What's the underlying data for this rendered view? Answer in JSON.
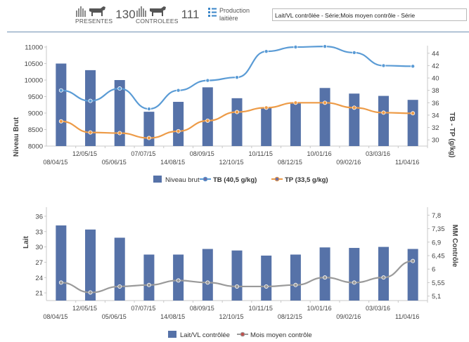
{
  "header": {
    "presentes": {
      "label": "PRESENTES",
      "value": "130"
    },
    "controlees": {
      "label": "CONTROLEES",
      "value": "111"
    },
    "production": {
      "line1": "Production",
      "line2": "laitière"
    },
    "select_value": "Lait/VL contrôlée - Série;Mois moyen contrôle - Série"
  },
  "chart_data": [
    {
      "type": "bar",
      "categories": [
        "08/04/15",
        "12/05/15",
        "05/06/15",
        "07/07/15",
        "14/08/15",
        "08/09/15",
        "12/10/15",
        "10/11/15",
        "08/12/15",
        "10/01/16",
        "09/02/16",
        "03/03/16",
        "11/04/16"
      ],
      "x_tick_labels": [
        "08/04/15",
        "12/05/15",
        "05/06/15",
        "07/07/15",
        "14/08/15",
        "08/09/15",
        "12/10/15",
        "10/11/15",
        "08/12/15",
        "10/01/16",
        "09/02/16",
        "03/03/16",
        "11/04/16"
      ],
      "ylabel": "Niveau Brut",
      "y2label": "TB - TP (g/kg)",
      "ylim": [
        8000,
        11000
      ],
      "yticks": [
        "8000",
        "8500",
        "9000",
        "9500",
        "10000",
        "10500",
        "11000"
      ],
      "y2lim": [
        29,
        45
      ],
      "y2ticks": [
        "30",
        "32",
        "34",
        "36",
        "38",
        "40",
        "42",
        "44"
      ],
      "series": [
        {
          "name": "Niveau brut",
          "kind": "bar",
          "axis": "left",
          "color": "#5672a8",
          "values": [
            10500,
            10300,
            10000,
            9040,
            9340,
            9780,
            9450,
            9170,
            9330,
            9760,
            9590,
            9520,
            9400
          ]
        },
        {
          "name": "TB (40,5 g/kg)",
          "kind": "line",
          "axis": "right",
          "color": "#5a9bd5",
          "values": [
            38.0,
            36.3,
            38.3,
            35.0,
            38.0,
            39.6,
            40.1,
            44.3,
            45.0,
            45.1,
            44.1,
            42.0,
            41.9
          ]
        },
        {
          "name": "TP (33,5 g/kg)",
          "kind": "line",
          "axis": "right",
          "color": "#ed9b47",
          "values": [
            33.0,
            31.2,
            31.1,
            30.3,
            31.4,
            33.1,
            34.5,
            35.2,
            36.0,
            36.0,
            35.2,
            34.4,
            34.3
          ]
        }
      ],
      "legend_position": "bottom",
      "legend": [
        "Niveau brut",
        "TB (40,5 g/kg)",
        "TP (33,5 g/kg)"
      ],
      "grid": false
    },
    {
      "type": "bar",
      "categories": [
        "08/04/15",
        "12/05/15",
        "05/06/15",
        "07/07/15",
        "14/08/15",
        "08/09/15",
        "12/10/15",
        "10/11/15",
        "08/12/15",
        "10/01/16",
        "09/02/16",
        "03/03/16",
        "11/04/16"
      ],
      "x_tick_labels": [
        "08/04/15",
        "12/05/15",
        "05/06/15",
        "07/07/15",
        "14/08/15",
        "08/09/15",
        "12/10/15",
        "10/11/15",
        "08/12/15",
        "10/01/16",
        "09/02/16",
        "03/03/16",
        "11/04/16"
      ],
      "ylabel": "Lait",
      "y2label": "MM Contrôle",
      "ylim": [
        19.5,
        37.5
      ],
      "yticks": [
        "21",
        "24",
        "27",
        "30",
        "33",
        "36"
      ],
      "y2lim": [
        4.95,
        8.02
      ],
      "y2ticks": [
        "5,1",
        "5,55",
        "6",
        "6,45",
        "6,9",
        "7,35",
        "7,8"
      ],
      "y2tick_values": [
        5.1,
        5.55,
        6.0,
        6.45,
        6.9,
        7.35,
        7.8
      ],
      "series": [
        {
          "name": "Lait/VL contrôlée",
          "kind": "bar",
          "axis": "left",
          "color": "#5672a8",
          "values": [
            34.2,
            33.4,
            31.8,
            28.5,
            28.5,
            29.6,
            29.3,
            28.3,
            28.5,
            29.9,
            29.8,
            30.0,
            29.6
          ]
        },
        {
          "name": "Mois moyen contrôle",
          "kind": "line",
          "axis": "right",
          "color": "#9a9a9a",
          "values": [
            5.55,
            5.22,
            5.42,
            5.47,
            5.62,
            5.55,
            5.42,
            5.42,
            5.47,
            5.72,
            5.55,
            5.72,
            6.27
          ]
        }
      ],
      "legend_position": "bottom",
      "legend": [
        "Lait/VL contrôlée",
        "Mois moyen contrôle"
      ],
      "grid": false
    }
  ]
}
